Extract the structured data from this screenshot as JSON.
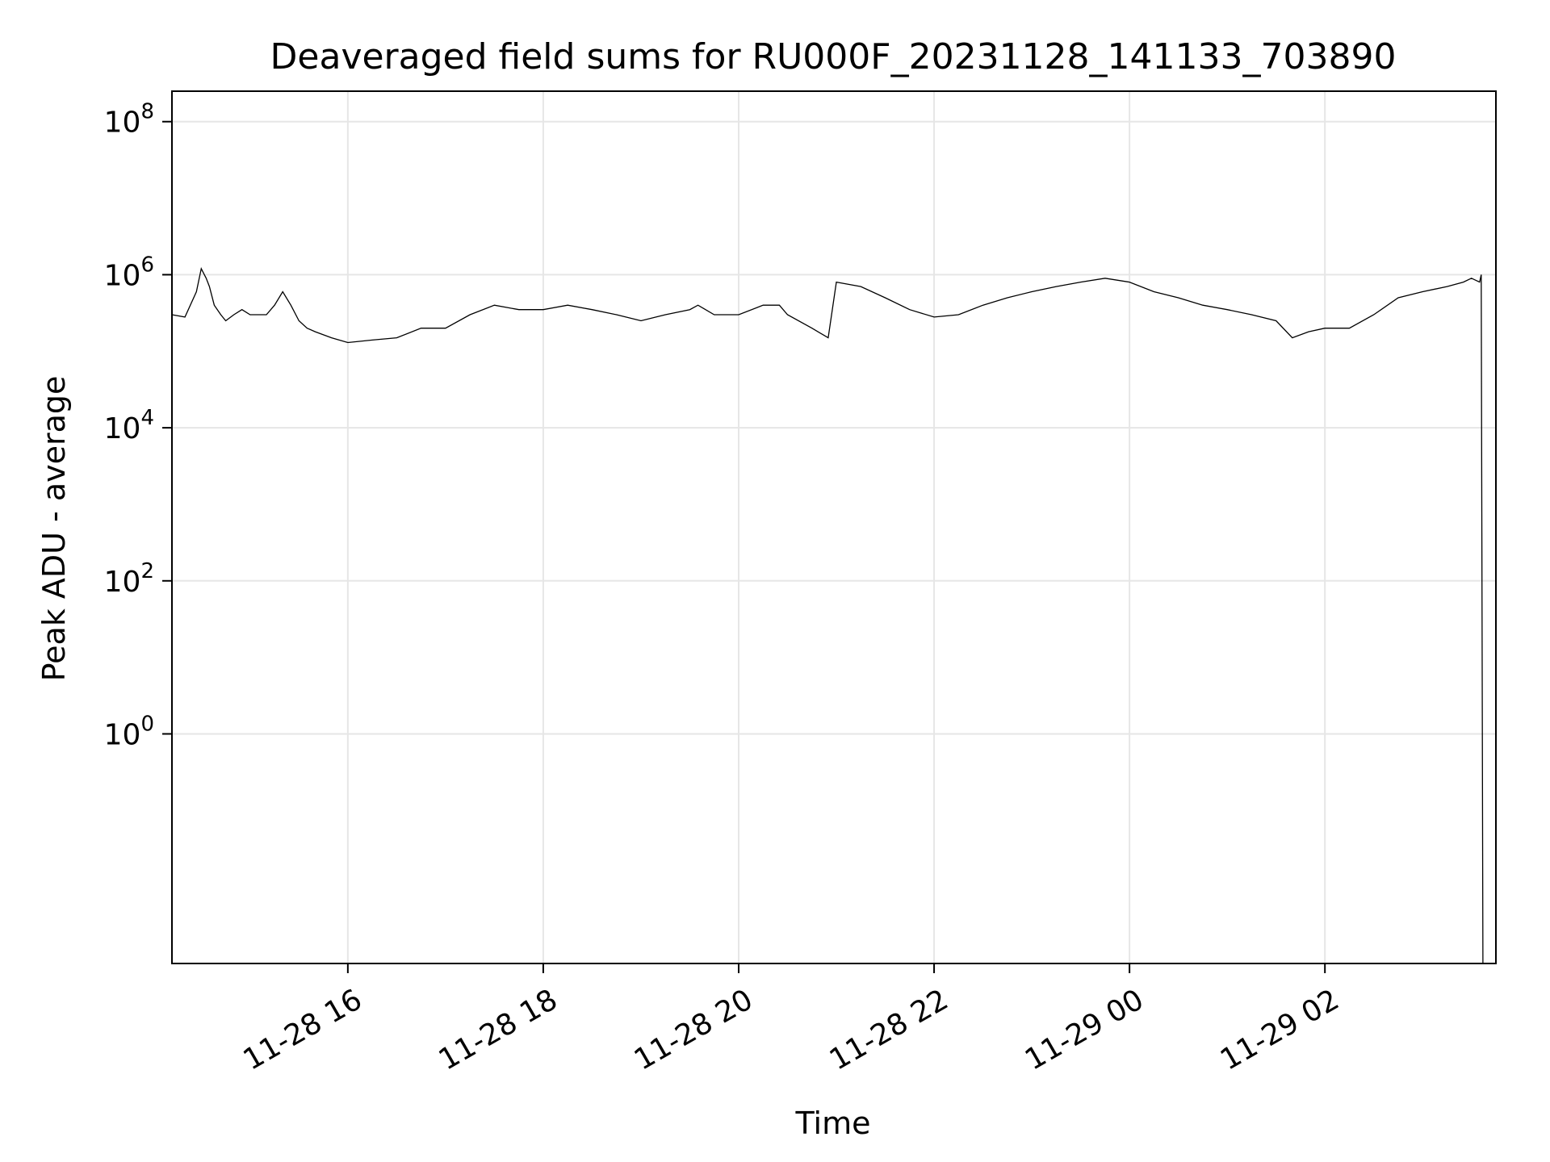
{
  "chart_data": {
    "type": "line",
    "title": "Deaveraged field sums for RU000F_20231128_141133_703890",
    "xlabel": "Time",
    "ylabel": "Peak ADU - average",
    "y_scale": "log",
    "grid": true,
    "legend": "none",
    "x_range": [
      "2023-11-28 14:12",
      "2023-11-29 03:45"
    ],
    "y_range": [
      0.001,
      250000000
    ],
    "x_ticks": [
      {
        "t": "2023-11-28 16:00",
        "label": "11-28 16"
      },
      {
        "t": "2023-11-28 18:00",
        "label": "11-28 18"
      },
      {
        "t": "2023-11-28 20:00",
        "label": "11-28 20"
      },
      {
        "t": "2023-11-28 22:00",
        "label": "11-28 22"
      },
      {
        "t": "2023-11-29 00:00",
        "label": "11-29 00"
      },
      {
        "t": "2023-11-29 02:00",
        "label": "11-29 02"
      }
    ],
    "y_ticks": [
      {
        "value": 1,
        "base": "10",
        "exp": "0"
      },
      {
        "value": 100,
        "base": "10",
        "exp": "2"
      },
      {
        "value": 10000,
        "base": "10",
        "exp": "4"
      },
      {
        "value": 1000000,
        "base": "10",
        "exp": "6"
      },
      {
        "value": 100000000,
        "base": "10",
        "exp": "8"
      }
    ],
    "series_color": "#000000",
    "series": [
      {
        "x": [
          "2023-11-28 14:12",
          "2023-11-28 14:20",
          "2023-11-28 14:27",
          "2023-11-28 14:30",
          "2023-11-28 14:33",
          "2023-11-28 14:35",
          "2023-11-28 14:38",
          "2023-11-28 14:42",
          "2023-11-28 14:45",
          "2023-11-28 14:50",
          "2023-11-28 14:55",
          "2023-11-28 15:00",
          "2023-11-28 15:10",
          "2023-11-28 15:15",
          "2023-11-28 15:20",
          "2023-11-28 15:25",
          "2023-11-28 15:30",
          "2023-11-28 15:35",
          "2023-11-28 15:40",
          "2023-11-28 15:50",
          "2023-11-28 16:00",
          "2023-11-28 16:15",
          "2023-11-28 16:30",
          "2023-11-28 16:45",
          "2023-11-28 17:00",
          "2023-11-28 17:15",
          "2023-11-28 17:30",
          "2023-11-28 17:45",
          "2023-11-28 18:00",
          "2023-11-28 18:15",
          "2023-11-28 18:30",
          "2023-11-28 18:45",
          "2023-11-28 19:00",
          "2023-11-28 19:15",
          "2023-11-28 19:30",
          "2023-11-28 19:35",
          "2023-11-28 19:45",
          "2023-11-28 20:00",
          "2023-11-28 20:15",
          "2023-11-28 20:25",
          "2023-11-28 20:30",
          "2023-11-28 20:45",
          "2023-11-28 20:55",
          "2023-11-28 21:00",
          "2023-11-28 21:15",
          "2023-11-28 21:30",
          "2023-11-28 21:45",
          "2023-11-28 22:00",
          "2023-11-28 22:15",
          "2023-11-28 22:30",
          "2023-11-28 22:45",
          "2023-11-28 23:00",
          "2023-11-28 23:15",
          "2023-11-28 23:30",
          "2023-11-28 23:45",
          "2023-11-29 00:00",
          "2023-11-29 00:15",
          "2023-11-29 00:30",
          "2023-11-29 00:45",
          "2023-11-29 01:00",
          "2023-11-29 01:15",
          "2023-11-29 01:30",
          "2023-11-29 01:40",
          "2023-11-29 01:50",
          "2023-11-29 02:00",
          "2023-11-29 02:15",
          "2023-11-29 02:30",
          "2023-11-29 02:45",
          "2023-11-29 03:00",
          "2023-11-29 03:15",
          "2023-11-29 03:25",
          "2023-11-29 03:30",
          "2023-11-29 03:35",
          "2023-11-29 03:36",
          "2023-11-29 03:37"
        ],
        "y": [
          300000,
          280000,
          600000,
          1200000,
          900000,
          700000,
          400000,
          300000,
          250000,
          300000,
          350000,
          300000,
          300000,
          400000,
          600000,
          400000,
          250000,
          200000,
          180000,
          150000,
          130000,
          140000,
          150000,
          200000,
          200000,
          300000,
          400000,
          350000,
          350000,
          400000,
          350000,
          300000,
          250000,
          300000,
          350000,
          400000,
          300000,
          300000,
          400000,
          400000,
          300000,
          200000,
          150000,
          800000,
          700000,
          500000,
          350000,
          280000,
          300000,
          400000,
          500000,
          600000,
          700000,
          800000,
          900000,
          800000,
          600000,
          500000,
          400000,
          350000,
          300000,
          250000,
          150000,
          180000,
          200000,
          200000,
          300000,
          500000,
          600000,
          700000,
          800000,
          900000,
          800000,
          1000000,
          0.001
        ],
        "line_width": 1
      }
    ]
  }
}
